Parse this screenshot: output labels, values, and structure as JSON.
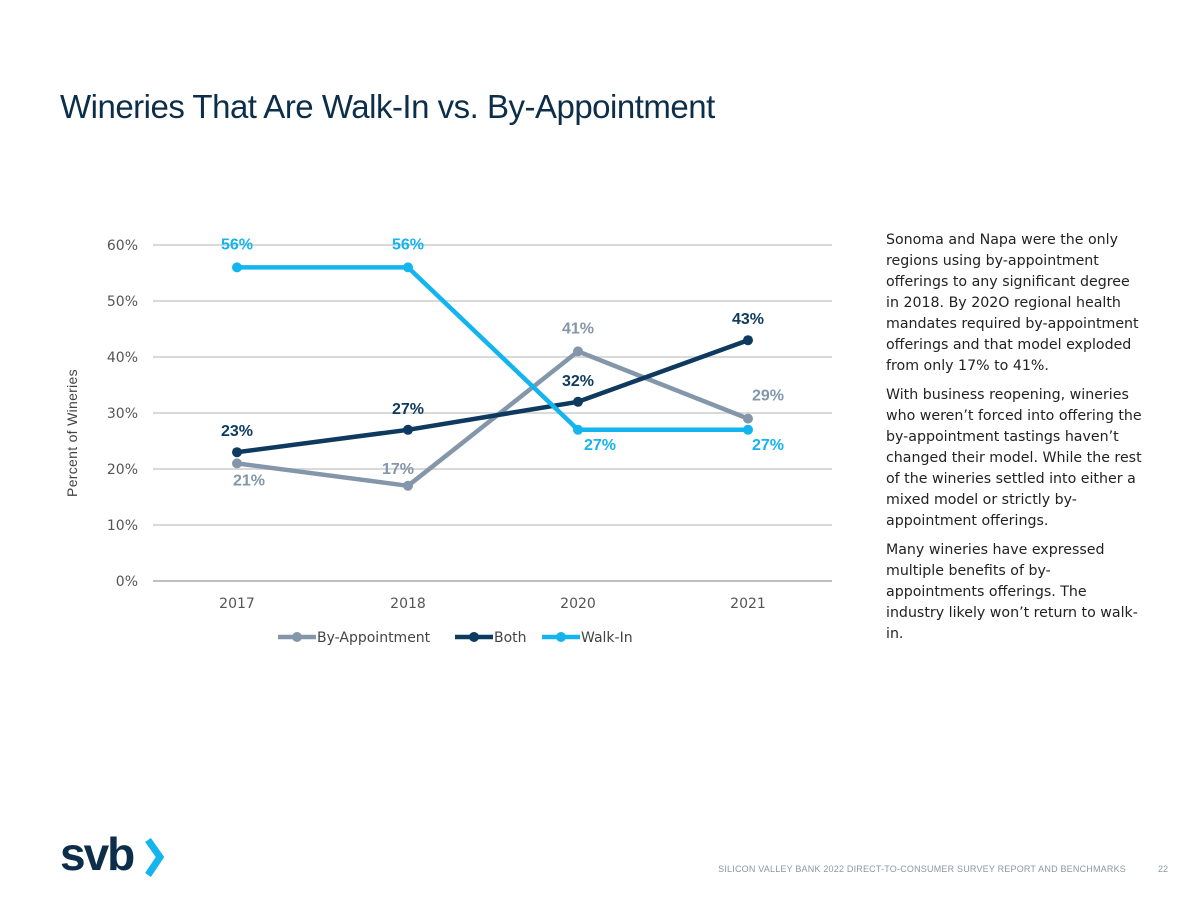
{
  "title": "Wineries That Are Walk-In vs. By-Appointment",
  "chart_data": {
    "type": "line",
    "title": "",
    "xlabel": "",
    "ylabel": "Percent of Wineries",
    "categories": [
      "2017",
      "2018",
      "2020",
      "2021"
    ],
    "ylim": [
      0,
      60
    ],
    "yticks": [
      "0%",
      "10%",
      "20%",
      "30%",
      "40%",
      "50%",
      "60%"
    ],
    "grid": true,
    "legend_position": "bottom",
    "series": [
      {
        "name": "By-Appointment",
        "color": "#8497aa",
        "values": [
          21,
          17,
          41,
          29
        ],
        "labels": [
          "21%",
          "17%",
          "41%",
          "29%"
        ]
      },
      {
        "name": "Both",
        "color": "#0d3a5e",
        "values": [
          23,
          27,
          32,
          43
        ],
        "labels": [
          "23%",
          "27%",
          "32%",
          "43%"
        ]
      },
      {
        "name": "Walk-In",
        "color": "#14b4ee",
        "values": [
          56,
          56,
          27,
          27
        ],
        "labels": [
          "56%",
          "56%",
          "27%",
          "27%"
        ]
      }
    ]
  },
  "sidebar": {
    "paragraphs": [
      "Sonoma and Napa were the only regions using by-appointment offerings to any significant degree in 2018. By 202O regional health mandates required by-appointment offerings and that model exploded from only 17% to 41%.",
      "With business reopening, wineries who weren’t forced into offering the by-appointment tastings haven’t changed their model. While the rest of the wineries settled into either a mixed model or strictly by-appointment offerings.",
      "Many wineries have expressed multiple benefits of by-appointments offerings. The industry likely won’t return to walk-in."
    ]
  },
  "logo": {
    "text": "svb",
    "colors": {
      "text": "#0d2e4a",
      "chevron": "#14b4ee"
    }
  },
  "footer": {
    "text": "SILICON VALLEY BANK 2022 DIRECT-TO-CONSUMER SURVEY REPORT AND BENCHMARKS",
    "page": "22"
  }
}
